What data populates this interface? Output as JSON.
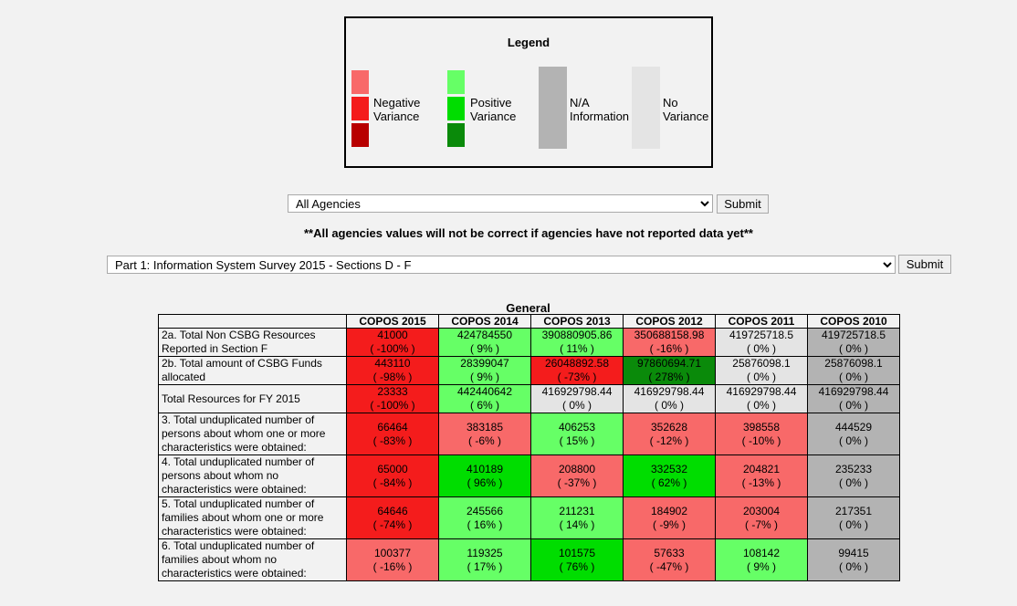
{
  "legend": {
    "title": "Legend",
    "items": [
      "Negative Variance",
      "Positive Variance",
      "N/A Information",
      "No Variance"
    ]
  },
  "agency_select": {
    "value": "All Agencies",
    "submit": "Submit"
  },
  "warning": "**All agencies values will not be correct if agencies have not reported data yet**",
  "section_select": {
    "value": "Part 1: Information System Survey 2015 - Sections D - F",
    "submit": "Submit"
  },
  "table": {
    "caption": "General",
    "headers": [
      "",
      "COPOS 2015",
      "COPOS 2014",
      "COPOS 2013",
      "COPOS 2012",
      "COPOS 2011",
      "COPOS 2010"
    ],
    "rows": [
      {
        "label": "2a. Total Non CSBG Resources Reported in Section F",
        "cells": [
          {
            "v": "41000",
            "p": "( -100% )",
            "c": "dr"
          },
          {
            "v": "424784550",
            "p": "( 9% )",
            "c": "lg"
          },
          {
            "v": "390880905.86",
            "p": "( 11% )",
            "c": "lg"
          },
          {
            "v": "350688158.98",
            "p": "( -16% )",
            "c": "lr"
          },
          {
            "v": "419725718.5",
            "p": "( 0% )",
            "c": "lgy"
          },
          {
            "v": "419725718.5",
            "p": "( 0% )",
            "c": "gy"
          }
        ]
      },
      {
        "label": "2b. Total amount of CSBG Funds allocated",
        "cells": [
          {
            "v": "443110",
            "p": "( -98% )",
            "c": "dr"
          },
          {
            "v": "28399047",
            "p": "( 9% )",
            "c": "lg"
          },
          {
            "v": "26048892.58",
            "p": "( -73% )",
            "c": "dr"
          },
          {
            "v": "97860694.71",
            "p": "( 278% )",
            "c": "dg"
          },
          {
            "v": "25876098.1",
            "p": "( 0% )",
            "c": "lgy"
          },
          {
            "v": "25876098.1",
            "p": "( 0% )",
            "c": "gy"
          }
        ]
      },
      {
        "label": "Total Resources for FY 2015",
        "cells": [
          {
            "v": "23333",
            "p": "( -100% )",
            "c": "dr"
          },
          {
            "v": "442440642",
            "p": "( 6% )",
            "c": "lg"
          },
          {
            "v": "416929798.44",
            "p": "( 0% )",
            "c": "lgy"
          },
          {
            "v": "416929798.44",
            "p": "( 0% )",
            "c": "lgy"
          },
          {
            "v": "416929798.44",
            "p": "( 0% )",
            "c": "lgy"
          },
          {
            "v": "416929798.44",
            "p": "( 0% )",
            "c": "gy"
          }
        ]
      },
      {
        "label": "3. Total unduplicated number of persons about whom one or more characteristics were obtained:",
        "cells": [
          {
            "v": "66464",
            "p": "( -83% )",
            "c": "dr"
          },
          {
            "v": "383185",
            "p": "( -6% )",
            "c": "lr"
          },
          {
            "v": "406253",
            "p": "( 15% )",
            "c": "lg"
          },
          {
            "v": "352628",
            "p": "( -12% )",
            "c": "lr"
          },
          {
            "v": "398558",
            "p": "( -10% )",
            "c": "lr"
          },
          {
            "v": "444529",
            "p": "( 0% )",
            "c": "gy"
          }
        ]
      },
      {
        "label": "4. Total unduplicated number of persons about whom no characteristics were obtained:",
        "cells": [
          {
            "v": "65000",
            "p": "( -84% )",
            "c": "dr"
          },
          {
            "v": "410189",
            "p": "( 96% )",
            "c": "mg"
          },
          {
            "v": "208800",
            "p": "( -37% )",
            "c": "lr"
          },
          {
            "v": "332532",
            "p": "( 62% )",
            "c": "mg"
          },
          {
            "v": "204821",
            "p": "( -13% )",
            "c": "lr"
          },
          {
            "v": "235233",
            "p": "( 0% )",
            "c": "gy"
          }
        ]
      },
      {
        "label": "5. Total unduplicated number of families about whom one or more characteristics were obtained:",
        "cells": [
          {
            "v": "64646",
            "p": "( -74% )",
            "c": "dr"
          },
          {
            "v": "245566",
            "p": "( 16% )",
            "c": "lg"
          },
          {
            "v": "211231",
            "p": "( 14% )",
            "c": "lg"
          },
          {
            "v": "184902",
            "p": "( -9% )",
            "c": "lr"
          },
          {
            "v": "203004",
            "p": "( -7% )",
            "c": "lr"
          },
          {
            "v": "217351",
            "p": "( 0% )",
            "c": "gy"
          }
        ]
      },
      {
        "label": "6. Total unduplicated number of families about whom no characteristics were obtained:",
        "cells": [
          {
            "v": "100377",
            "p": "( -16% )",
            "c": "lr"
          },
          {
            "v": "119325",
            "p": "( 17% )",
            "c": "lg"
          },
          {
            "v": "101575",
            "p": "( 76% )",
            "c": "mg"
          },
          {
            "v": "57633",
            "p": "( -47% )",
            "c": "lr"
          },
          {
            "v": "108142",
            "p": "( 9% )",
            "c": "lg"
          },
          {
            "v": "99415",
            "p": "( 0% )",
            "c": "gy"
          }
        ]
      }
    ]
  },
  "colors": {
    "dark_red": "#f41c1c",
    "light_red": "#f86969",
    "very_dark_red": "#b80000",
    "light_green": "#66ff66",
    "medium_green": "#00dd00",
    "dark_green": "#0a8a0a",
    "gray": "#b3b3b3",
    "light_gray": "#e4e4e4"
  }
}
